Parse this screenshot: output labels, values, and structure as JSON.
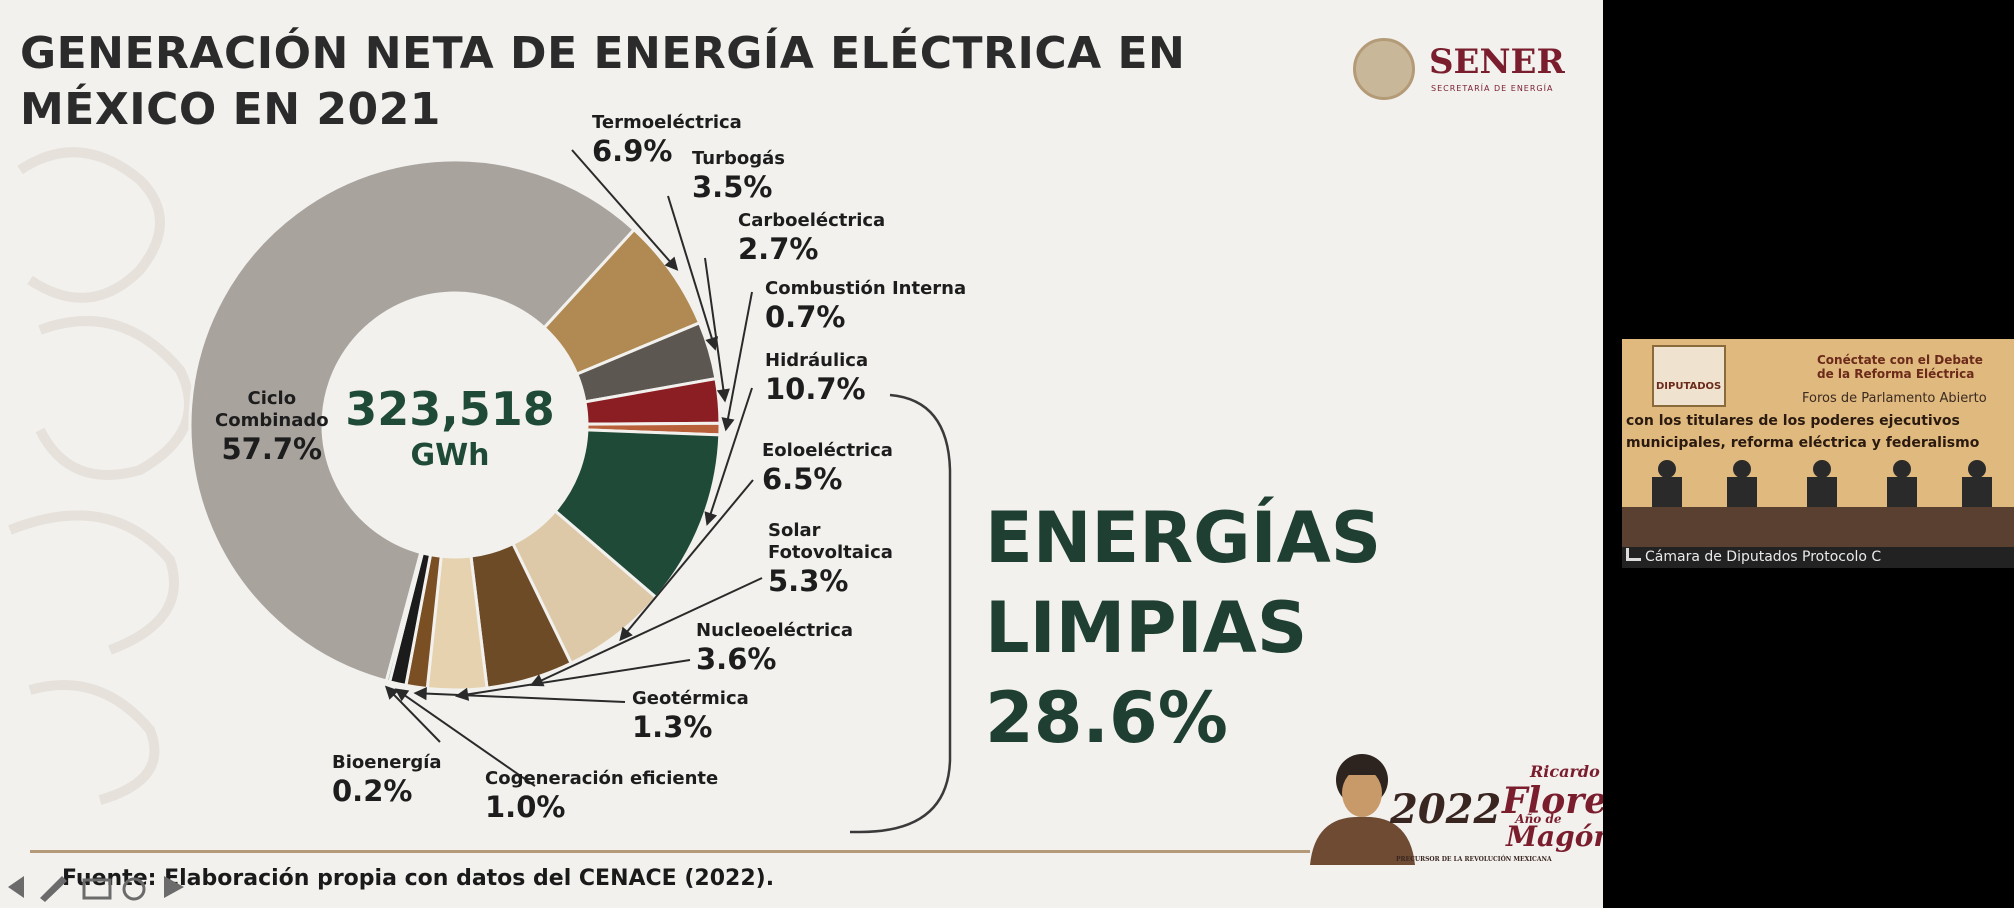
{
  "slide": {
    "title_line1": "GENERACIÓN NETA DE ENERGÍA ELÉCTRICA EN",
    "title_line2": "MÉXICO EN 2021",
    "logo_text": "SENER",
    "logo_sub": "SECRETARÍA DE ENERGÍA",
    "center_value": "323,518",
    "center_unit": "GWh",
    "clean_line1": "ENERGÍAS",
    "clean_line2": "LIMPIAS",
    "clean_value": "28.6%",
    "source_prefix": "Fuente:",
    "source_text": "Elaboración propia con datos del CENACE (2022).",
    "badge_year": "2022",
    "badge_sub": "Año de",
    "badge_name_line1": "Ricardo",
    "badge_name_line2": "Flores",
    "badge_name_line3": "Magón",
    "badge_tagline": "PRECURSOR DE LA REVOLUCIÓN MEXICANA"
  },
  "chart_data": {
    "type": "pie",
    "subtype": "donut",
    "title": "GENERACIÓN NETA DE ENERGÍA ELÉCTRICA EN MÉXICO EN 2021",
    "total": "323,518 GWh",
    "unit": "%",
    "slices": [
      {
        "label": "Ciclo Combinado",
        "value": 57.7,
        "display": "57.7%",
        "color": "#a9a39e"
      },
      {
        "label": "Termoeléctrica",
        "value": 6.9,
        "display": "6.9%",
        "color": "#b08a52"
      },
      {
        "label": "Turbogás",
        "value": 3.5,
        "display": "3.5%",
        "color": "#5d5752"
      },
      {
        "label": "Carboeléctrica",
        "value": 2.7,
        "display": "2.7%",
        "color": "#8b1e22"
      },
      {
        "label": "Combustión Interna",
        "value": 0.7,
        "display": "0.7%",
        "color": "#b8603a"
      },
      {
        "label": "Hidráulica",
        "value": 10.7,
        "display": "10.7%",
        "color": "#1f4a38"
      },
      {
        "label": "Eoloeléctrica",
        "value": 6.5,
        "display": "6.5%",
        "color": "#ddc9a8"
      },
      {
        "label": "Solar Fotovoltaica",
        "value": 5.3,
        "display": "5.3%",
        "color": "#6e4b27"
      },
      {
        "label": "Nucleoeléctrica",
        "value": 3.6,
        "display": "3.6%",
        "color": "#e7d2b0"
      },
      {
        "label": "Geotérmica",
        "value": 1.3,
        "display": "1.3%",
        "color": "#7a4f23"
      },
      {
        "label": "Cogeneración eficiente",
        "value": 1.0,
        "display": "1.0%",
        "color": "#1b1b1b"
      },
      {
        "label": "Bioenergía",
        "value": 0.2,
        "display": "0.2%",
        "color": "#3b8f88"
      }
    ]
  },
  "video": {
    "header_line1": "Conéctate con el Debate",
    "header_line2": "de la Reforma Eléctrica",
    "header_line3": "Foros de Parlamento Abierto",
    "banner_line1": "con los titulares de los poderes ejecutivos",
    "banner_line2": "municipales, reforma eléctrica y federalismo",
    "logo_text": "DIPUTADOS",
    "caption": "Cámara de Diputados Protocolo C"
  }
}
